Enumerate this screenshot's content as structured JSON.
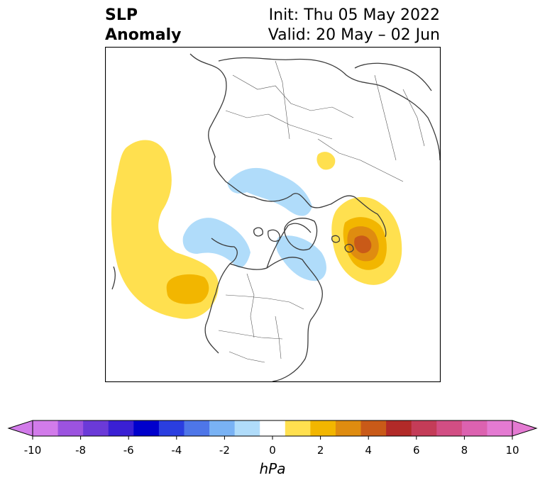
{
  "title": {
    "line1": "SLP",
    "line2": "Anomaly",
    "init": "Init: Thu 05 May 2022",
    "valid": "Valid: 20 May – 02 Jun"
  },
  "colorbar": {
    "label": "hPa",
    "ticks": [
      "-10",
      "-8",
      "-6",
      "-4",
      "-2",
      "0",
      "2",
      "4",
      "6",
      "8",
      "10"
    ],
    "colors": [
      "#d27bea",
      "#9c53e0",
      "#6b3ad8",
      "#3a20d4",
      "#0000cc",
      "#2a3ee0",
      "#4e76e8",
      "#79b2f4",
      "#b0dcfa",
      "#ffffff",
      "#ffe04f",
      "#f2b600",
      "#df8c10",
      "#c95a18",
      "#b22a28",
      "#c43c58",
      "#d24e84",
      "#dc62b0",
      "#e47ad2"
    ],
    "extend_left": "#d27bea",
    "extend_right": "#e47ad2"
  }
}
